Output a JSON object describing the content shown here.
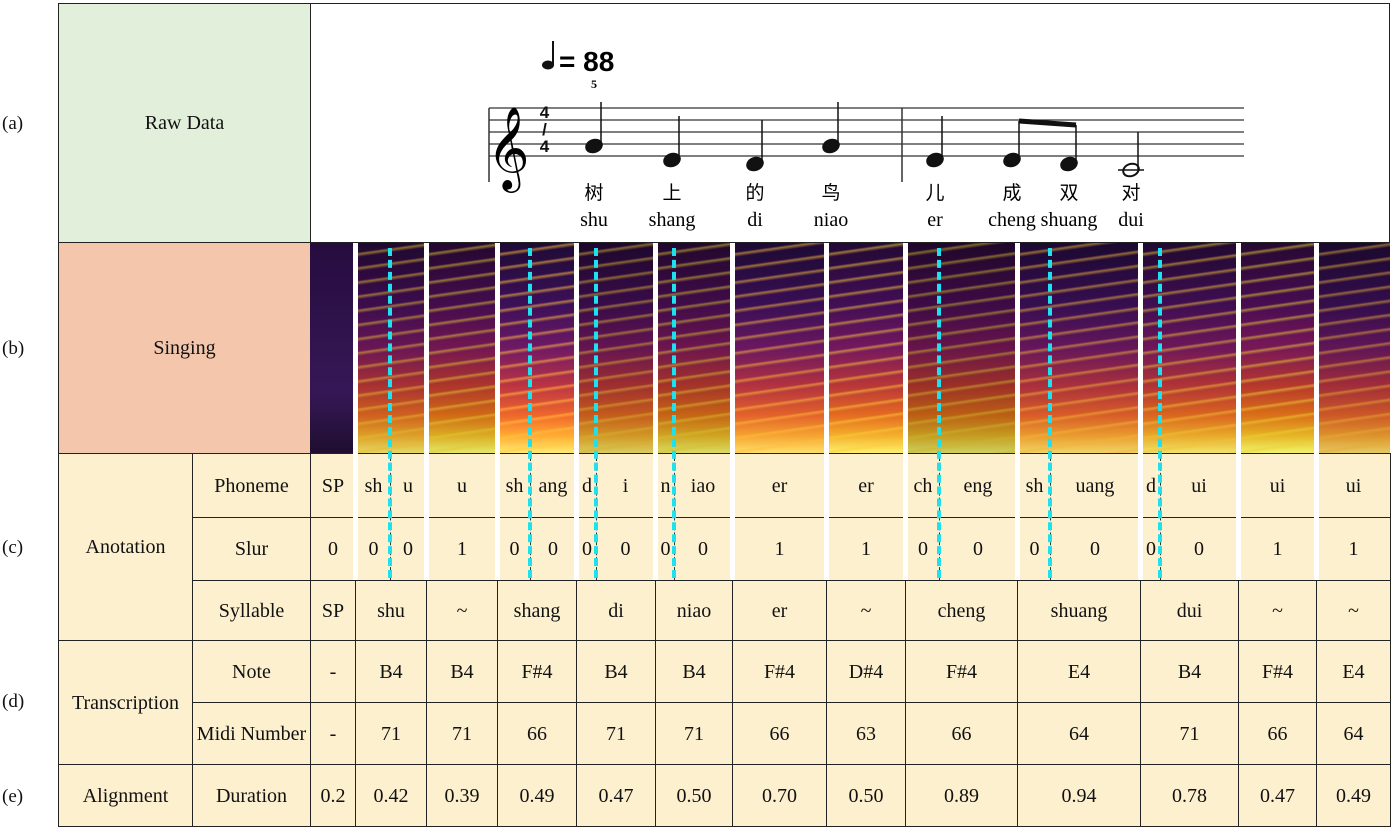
{
  "row_labels": [
    "(a)",
    "(b)",
    "(c)",
    "(d)",
    "(e)"
  ],
  "sections": {
    "raw_data": "Raw Data",
    "singing": "Singing",
    "annotation": "Anotation",
    "transcription": "Transcription",
    "alignment": "Alignment"
  },
  "sub_labels": {
    "phoneme": "Phoneme",
    "slur": "Slur",
    "syllable": "Syllable",
    "note": "Note",
    "midi": "Midi Number",
    "duration": "Duration"
  },
  "score": {
    "tempo": "= 88",
    "measure_number": "5",
    "time_signature": "4/4",
    "lyrics": [
      {
        "hanzi": "树",
        "pinyin": "shu"
      },
      {
        "hanzi": "上",
        "pinyin": "shang"
      },
      {
        "hanzi": "的",
        "pinyin": "di"
      },
      {
        "hanzi": "鸟",
        "pinyin": "niao"
      },
      {
        "hanzi": "儿",
        "pinyin": "er"
      },
      {
        "hanzi": "成",
        "pinyin": "cheng"
      },
      {
        "hanzi": "双",
        "pinyin": "shuang"
      },
      {
        "hanzi": "对",
        "pinyin": "dui"
      }
    ]
  },
  "columns": [
    {
      "phonemes": [
        {
          "ph": "SP",
          "slur": "0"
        }
      ],
      "syllable": "SP",
      "note": "-",
      "midi": "-",
      "duration": "0.2"
    },
    {
      "phonemes": [
        {
          "ph": "sh",
          "slur": "0"
        },
        {
          "ph": "u",
          "slur": "0"
        }
      ],
      "syllable": "shu",
      "note": "B4",
      "midi": "71",
      "duration": "0.42"
    },
    {
      "phonemes": [
        {
          "ph": "u",
          "slur": "1"
        }
      ],
      "syllable": "~",
      "note": "B4",
      "midi": "71",
      "duration": "0.39"
    },
    {
      "phonemes": [
        {
          "ph": "sh",
          "slur": "0"
        },
        {
          "ph": "ang",
          "slur": "0"
        }
      ],
      "syllable": "shang",
      "note": "F#4",
      "midi": "66",
      "duration": "0.49"
    },
    {
      "phonemes": [
        {
          "ph": "d",
          "slur": "0"
        },
        {
          "ph": "i",
          "slur": "0"
        }
      ],
      "syllable": "di",
      "note": "B4",
      "midi": "71",
      "duration": "0.47"
    },
    {
      "phonemes": [
        {
          "ph": "n",
          "slur": "0"
        },
        {
          "ph": "iao",
          "slur": "0"
        }
      ],
      "syllable": "niao",
      "note": "B4",
      "midi": "71",
      "duration": "0.50"
    },
    {
      "phonemes": [
        {
          "ph": "er",
          "slur": "1"
        }
      ],
      "syllable": "er",
      "note": "F#4",
      "midi": "66",
      "duration": "0.70"
    },
    {
      "phonemes": [
        {
          "ph": "er",
          "slur": "1"
        }
      ],
      "syllable": "~",
      "note": "D#4",
      "midi": "63",
      "duration": "0.50"
    },
    {
      "phonemes": [
        {
          "ph": "ch",
          "slur": "0"
        },
        {
          "ph": "eng",
          "slur": "0"
        }
      ],
      "syllable": "cheng",
      "note": "F#4",
      "midi": "66",
      "duration": "0.89"
    },
    {
      "phonemes": [
        {
          "ph": "sh",
          "slur": "0"
        },
        {
          "ph": "uang",
          "slur": "0"
        }
      ],
      "syllable": "shuang",
      "note": "E4",
      "midi": "64",
      "duration": "0.94"
    },
    {
      "phonemes": [
        {
          "ph": "d",
          "slur": "0"
        },
        {
          "ph": "ui",
          "slur": "0"
        }
      ],
      "syllable": "dui",
      "note": "B4",
      "midi": "71",
      "duration": "0.78"
    },
    {
      "phonemes": [
        {
          "ph": "ui",
          "slur": "1"
        }
      ],
      "syllable": "~",
      "note": "F#4",
      "midi": "66",
      "duration": "0.47"
    },
    {
      "phonemes": [
        {
          "ph": "ui",
          "slur": "1"
        }
      ],
      "syllable": "~",
      "note": "E4",
      "midi": "64",
      "duration": "0.49"
    }
  ],
  "colors": {
    "raw": "#e2efda",
    "singing": "#f4c7ac",
    "table": "#fdf0cf",
    "boundary": "#1ee0ee"
  }
}
